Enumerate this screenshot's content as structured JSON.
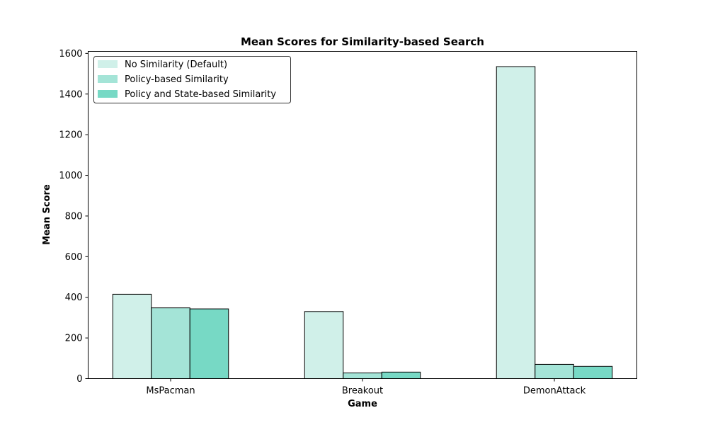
{
  "chart_data": {
    "type": "bar",
    "title": "Mean Scores for Similarity-based Search",
    "xlabel": "Game",
    "ylabel": "Mean Score",
    "categories": [
      "MsPacman",
      "Breakout",
      "DemonAttack"
    ],
    "series": [
      {
        "name": "No Similarity (Default)",
        "color": "#d0f0e9",
        "values": [
          415,
          330,
          1535
        ]
      },
      {
        "name": "Policy-based Similarity",
        "color": "#a4e4d7",
        "values": [
          348,
          28,
          70
        ]
      },
      {
        "name": "Policy and State-based Similarity",
        "color": "#77d9c5",
        "values": [
          343,
          32,
          60
        ]
      }
    ],
    "ylim": [
      0,
      1610
    ],
    "yticks": [
      0,
      200,
      400,
      600,
      800,
      1000,
      1200,
      1400,
      1600
    ],
    "grid": false,
    "legend_position": "top-left"
  }
}
